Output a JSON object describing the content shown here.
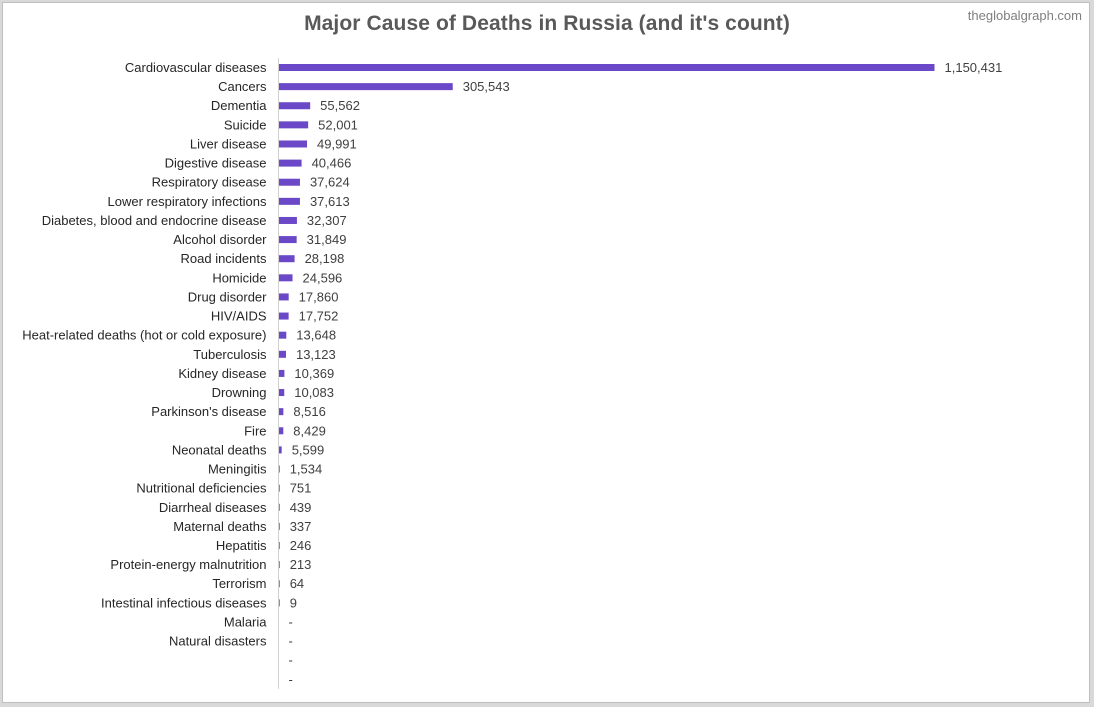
{
  "page": {
    "title": "Major Cause of Deaths in Russia (and it's count)",
    "watermark": "theglobalgraph.com"
  },
  "colors": {
    "bar": "#6a48c8",
    "axis": "#d0d0d0",
    "background": "#ffffff",
    "frame": "#d9d9d9"
  },
  "chart_data": {
    "type": "bar",
    "orientation": "horizontal",
    "title": "Major Cause of Deaths in Russia (and it's count)",
    "xlabel": "",
    "ylabel": "",
    "grid": false,
    "legend": "none",
    "xlim": [
      0,
      1150431
    ],
    "categories": [
      "Cardiovascular diseases",
      "Cancers",
      "Dementia",
      "Suicide",
      "Liver disease",
      "Digestive disease",
      "Respiratory disease",
      "Lower respiratory infections",
      "Diabetes, blood and endocrine disease",
      "Alcohol disorder",
      "Road incidents",
      "Homicide",
      "Drug disorder",
      "HIV/AIDS",
      "Heat-related deaths (hot or cold exposure)",
      "Tuberculosis",
      "Kidney disease",
      "Drowning",
      "Parkinson's disease",
      "Fire",
      "Neonatal deaths",
      "Meningitis",
      "Nutritional deficiencies",
      "Diarrheal diseases",
      "Maternal deaths",
      "Hepatitis",
      "Protein-energy malnutrition",
      "Terrorism",
      "Intestinal infectious diseases",
      "Malaria",
      "Natural disasters",
      "",
      ""
    ],
    "values": [
      1150431,
      305543,
      55562,
      52001,
      49991,
      40466,
      37624,
      37613,
      32307,
      31849,
      28198,
      24596,
      17860,
      17752,
      13648,
      13123,
      10369,
      10083,
      8516,
      8429,
      5599,
      1534,
      751,
      439,
      337,
      246,
      213,
      64,
      9,
      0,
      0,
      0,
      0
    ],
    "value_labels": [
      "1,150,431",
      "305,543",
      "55,562",
      "52,001",
      "49,991",
      "40,466",
      "37,624",
      "37,613",
      "32,307",
      "31,849",
      "28,198",
      "24,596",
      "17,860",
      "17,752",
      "13,648",
      "13,123",
      "10,369",
      "10,083",
      "8,516",
      "8,429",
      "5,599",
      "1,534",
      "751",
      "439",
      "337",
      "246",
      "213",
      "64",
      "9",
      "-",
      "-",
      "-",
      "-"
    ]
  }
}
